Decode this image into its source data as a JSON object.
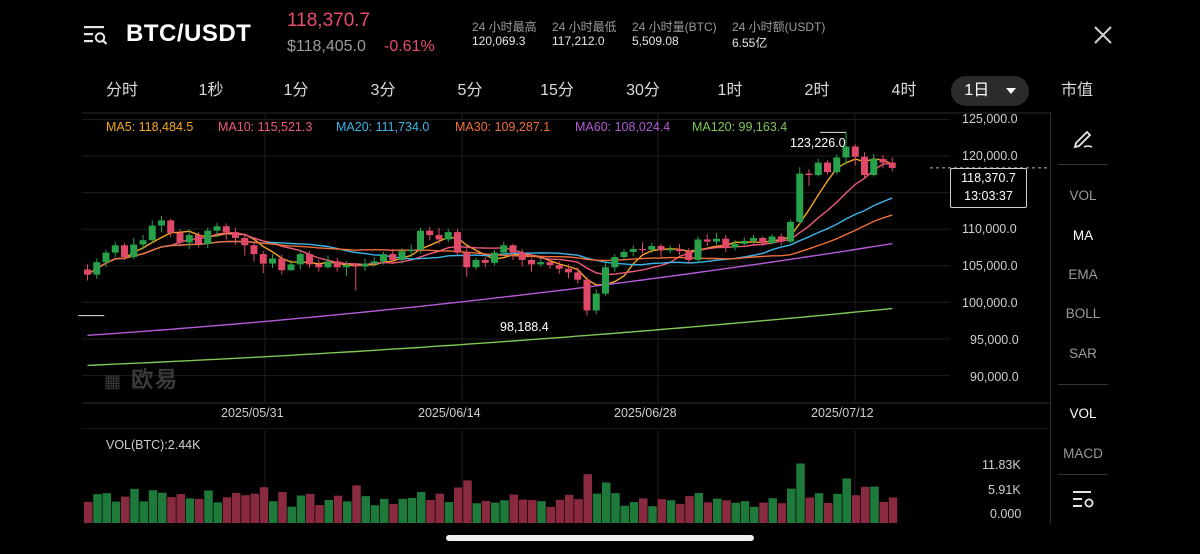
{
  "header": {
    "pair": "BTC/USDT",
    "last_price": "118,370.7",
    "usd_price": "$118,405.0",
    "change_pct": "-0.61%",
    "stats": [
      {
        "label": "24 小时最高",
        "value": "120,069.3"
      },
      {
        "label": "24 小时最低",
        "value": "117,212.0"
      },
      {
        "label": "24 小时量(BTC)",
        "value": "5,509.08"
      },
      {
        "label": "24 小时额(USDT)",
        "value": "6.55亿"
      }
    ],
    "menu_icon": "list-search-icon",
    "close_icon": "close-icon"
  },
  "tabs": [
    {
      "label": "分时"
    },
    {
      "label": "1秒"
    },
    {
      "label": "1分"
    },
    {
      "label": "3分"
    },
    {
      "label": "5分"
    },
    {
      "label": "15分"
    },
    {
      "label": "30分"
    },
    {
      "label": "1时"
    },
    {
      "label": "2时"
    },
    {
      "label": "4时"
    },
    {
      "label": "1日",
      "active": true,
      "dropdown": true
    },
    {
      "label": "市值"
    }
  ],
  "colors": {
    "up": "#27a14a",
    "down": "#e04a68",
    "up_vol": "#1e7a3a",
    "down_vol": "#8a2a40",
    "ma5": "#f5a623",
    "ma10": "#ef5a7a",
    "ma20": "#3cb4e6",
    "ma30": "#f07038",
    "ma60": "#b35ad6",
    "ma120": "#7dc857"
  },
  "ma_legend": [
    {
      "text": "MA5: 118,484.5",
      "color": "#f5a623"
    },
    {
      "text": "MA10: 115,521.3",
      "color": "#ef5a7a"
    },
    {
      "text": "MA20: 111,734.0",
      "color": "#3cb4e6"
    },
    {
      "text": "MA30: 109,287.1",
      "color": "#f07038"
    },
    {
      "text": "MA60: 108,024.4",
      "color": "#b35ad6"
    },
    {
      "text": "MA120: 99,163.4",
      "color": "#7dc857"
    }
  ],
  "price_axis": [
    "125,000.0",
    "120,000.0",
    "110,000.0",
    "105,000.0",
    "100,000.0",
    "95,000.0",
    "90,000.0"
  ],
  "date_axis": [
    "2025/05/31",
    "2025/06/14",
    "2025/06/28",
    "2025/07/12"
  ],
  "annotations": {
    "high": "123,226.0",
    "low": "98,188.4"
  },
  "price_tag": {
    "price": "118,370.7",
    "countdown": "13:03:37"
  },
  "watermark": "欧易",
  "volume": {
    "label": "VOL(BTC):2.44K",
    "axis": [
      "11.83K",
      "5.91K",
      "0.000"
    ]
  },
  "right_panel": [
    {
      "label": "pen-icon",
      "kind": "icon"
    },
    {
      "label": "VOL"
    },
    {
      "label": "MA",
      "active": true
    },
    {
      "label": "EMA"
    },
    {
      "label": "BOLL"
    },
    {
      "label": "SAR"
    },
    {
      "label": "VOL",
      "active": true
    },
    {
      "label": "MACD"
    },
    {
      "label": "settings-list-icon",
      "kind": "icon"
    }
  ],
  "chart_data": {
    "type": "candlestick",
    "y_range": [
      88000,
      126000
    ],
    "high_label": 123226.0,
    "low_label": 98188.4,
    "current": 118370.7,
    "candles": [
      [
        104500,
        103800,
        105200,
        103000
      ],
      [
        103800,
        105500,
        106000,
        103200
      ],
      [
        105500,
        106800,
        107200,
        104800
      ],
      [
        106800,
        107800,
        108300,
        106200
      ],
      [
        107800,
        106200,
        108100,
        105800
      ],
      [
        106200,
        107900,
        108800,
        105900
      ],
      [
        107900,
        108500,
        109200,
        107200
      ],
      [
        108500,
        110500,
        111200,
        108100
      ],
      [
        110500,
        111200,
        111800,
        109600
      ],
      [
        111200,
        109500,
        111400,
        108900
      ],
      [
        109500,
        108200,
        110000,
        107600
      ],
      [
        108200,
        109200,
        110000,
        107300
      ],
      [
        109200,
        108000,
        109600,
        107500
      ],
      [
        108000,
        109800,
        110200,
        107400
      ],
      [
        109800,
        110400,
        110900,
        108900
      ],
      [
        110400,
        109600,
        110800,
        108600
      ],
      [
        109600,
        108800,
        110200,
        107900
      ],
      [
        108800,
        107800,
        109300,
        106400
      ],
      [
        107800,
        106600,
        108200,
        105600
      ],
      [
        106600,
        105300,
        107000,
        104000
      ],
      [
        105300,
        106000,
        106600,
        104700
      ],
      [
        106000,
        104400,
        106500,
        103800
      ],
      [
        104400,
        105200,
        105800,
        104300
      ],
      [
        105200,
        106600,
        107100,
        104500
      ],
      [
        106600,
        105200,
        107000,
        104700
      ],
      [
        105200,
        104800,
        105800,
        104200
      ],
      [
        104800,
        105600,
        106400,
        104600
      ],
      [
        105600,
        104800,
        106100,
        104200
      ],
      [
        104800,
        105100,
        105600,
        103600
      ],
      [
        105100,
        104900,
        105400,
        101600
      ],
      [
        104900,
        105300,
        106000,
        104300
      ],
      [
        105300,
        105600,
        106200,
        104900
      ],
      [
        105600,
        106600,
        106900,
        105200
      ],
      [
        106600,
        105800,
        107300,
        105400
      ],
      [
        105800,
        107000,
        107400,
        105300
      ],
      [
        107000,
        107200,
        107900,
        106200
      ],
      [
        107200,
        109800,
        110200,
        106700
      ],
      [
        109800,
        109200,
        110300,
        108500
      ],
      [
        109200,
        108600,
        110200,
        108000
      ],
      [
        108600,
        109600,
        110100,
        108200
      ],
      [
        109600,
        106800,
        110000,
        106500
      ],
      [
        106800,
        104800,
        107500,
        103500
      ],
      [
        104800,
        105800,
        106100,
        104500
      ],
      [
        105800,
        105400,
        106200,
        104800
      ],
      [
        105400,
        106800,
        107200,
        105100
      ],
      [
        106800,
        107800,
        108300,
        106400
      ],
      [
        107800,
        106800,
        108000,
        105800
      ],
      [
        106800,
        105800,
        107300,
        104900
      ],
      [
        105800,
        105200,
        106000,
        104200
      ],
      [
        105200,
        105500,
        106000,
        104900
      ],
      [
        105500,
        105100,
        105800,
        104600
      ],
      [
        105100,
        104600,
        105600,
        103900
      ],
      [
        104600,
        104100,
        105200,
        103300
      ],
      [
        104100,
        103100,
        104800,
        102600
      ],
      [
        103100,
        98900,
        103500,
        98188
      ],
      [
        98900,
        101200,
        101800,
        98400
      ],
      [
        101200,
        104800,
        105400,
        100900
      ],
      [
        104800,
        106200,
        106600,
        104200
      ],
      [
        106200,
        106900,
        107300,
        105800
      ],
      [
        106900,
        107300,
        107800,
        106300
      ],
      [
        107300,
        107200,
        108200,
        106700
      ],
      [
        107200,
        107700,
        108100,
        106800
      ],
      [
        107700,
        107100,
        108000,
        106200
      ],
      [
        107100,
        107300,
        107800,
        106700
      ],
      [
        107300,
        107000,
        108000,
        106500
      ],
      [
        107000,
        105800,
        107400,
        105300
      ],
      [
        105800,
        108600,
        109000,
        105500
      ],
      [
        108600,
        108300,
        109300,
        107700
      ],
      [
        108300,
        108700,
        109500,
        107900
      ],
      [
        108700,
        107500,
        109200,
        106900
      ],
      [
        107500,
        108000,
        108500,
        107100
      ],
      [
        108000,
        108400,
        108900,
        107800
      ],
      [
        108400,
        108800,
        109200,
        108000
      ],
      [
        108800,
        108100,
        109000,
        107700
      ],
      [
        108100,
        109000,
        109300,
        107900
      ],
      [
        109000,
        108300,
        109400,
        107800
      ],
      [
        108300,
        111000,
        111300,
        108100
      ],
      [
        111000,
        117600,
        118500,
        110700
      ],
      [
        117600,
        117400,
        118200,
        115900
      ],
      [
        117400,
        119100,
        119600,
        117200
      ],
      [
        119100,
        117800,
        119400,
        117500
      ],
      [
        117800,
        119800,
        120200,
        117500
      ],
      [
        119800,
        121300,
        123226,
        118800
      ],
      [
        121300,
        119900,
        121600,
        118700
      ],
      [
        119900,
        117400,
        120500,
        116900
      ],
      [
        117400,
        119600,
        120300,
        117200
      ],
      [
        119600,
        119100,
        120100,
        118300
      ],
      [
        119100,
        118371,
        119800,
        117900
      ]
    ],
    "volume_max_label": 11830
  }
}
